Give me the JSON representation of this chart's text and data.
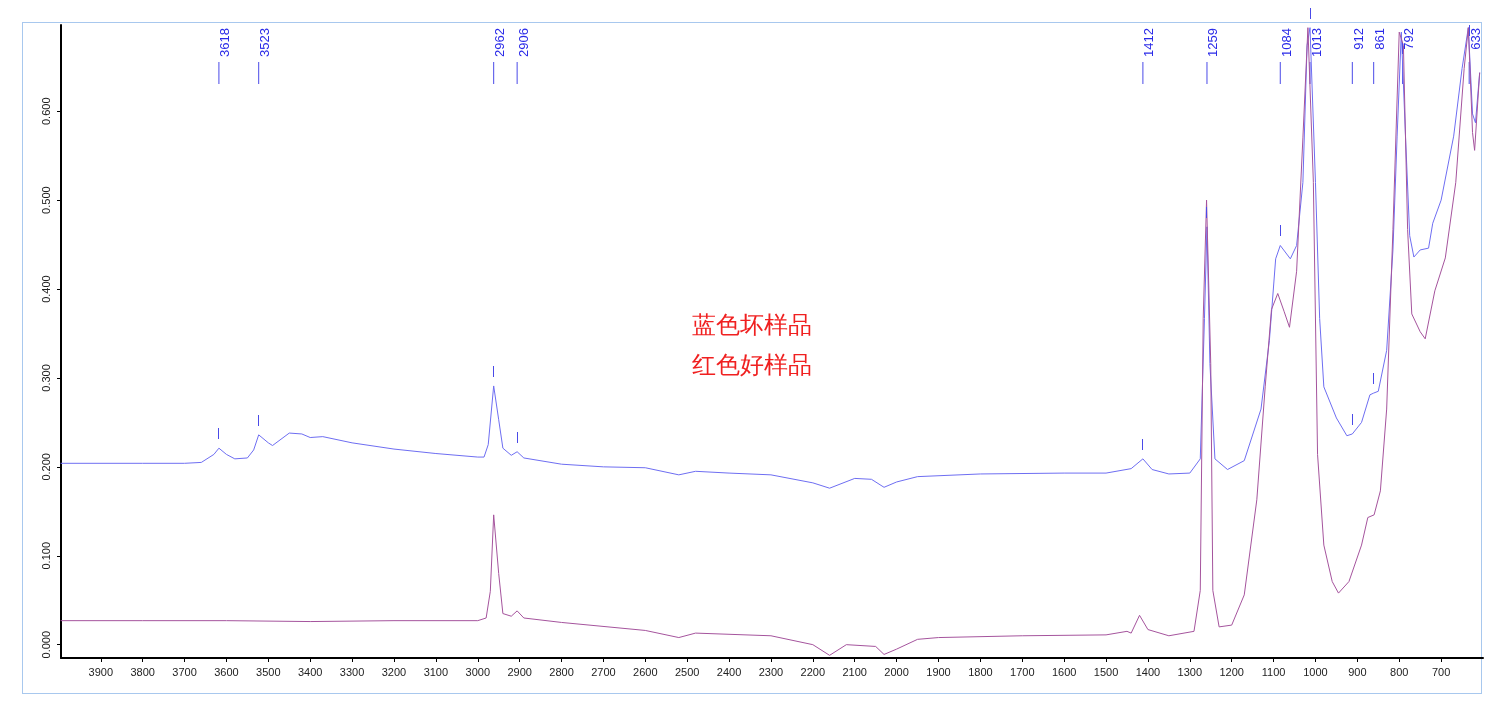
{
  "chart_data": {
    "type": "line",
    "xlim": [
      3995,
      600
    ],
    "ylim": [
      -0.015,
      0.697
    ],
    "xticks": [
      3900,
      3800,
      3700,
      3600,
      3500,
      3400,
      3300,
      3200,
      3100,
      3000,
      2900,
      2800,
      2700,
      2600,
      2500,
      2400,
      2300,
      2200,
      2100,
      2000,
      1900,
      1800,
      1700,
      1600,
      1500,
      1400,
      1300,
      1200,
      1100,
      1000,
      900,
      800,
      700
    ],
    "yticks": [
      {
        "value": 0,
        "label": "0.000"
      },
      {
        "value": 0.1,
        "label": "0.100"
      },
      {
        "value": 0.2,
        "label": "0.200"
      },
      {
        "value": 0.3,
        "label": "0.300"
      },
      {
        "value": 0.4,
        "label": "0.400"
      },
      {
        "value": 0.5,
        "label": "0.500"
      },
      {
        "value": 0.6,
        "label": "0.600"
      }
    ],
    "grid": false,
    "marker": "none",
    "line_style": "solid",
    "series": [
      {
        "color": "#6e6ef2",
        "x": [
          3995,
          3800,
          3700,
          3660,
          3630,
          3618,
          3600,
          3580,
          3550,
          3535,
          3523,
          3500,
          3490,
          3450,
          3420,
          3400,
          3370,
          3300,
          3200,
          3100,
          3000,
          2985,
          2975,
          2962,
          2950,
          2940,
          2920,
          2906,
          2890,
          2800,
          2700,
          2600,
          2520,
          2480,
          2400,
          2300,
          2200,
          2160,
          2100,
          2060,
          2030,
          2000,
          1950,
          1800,
          1600,
          1500,
          1440,
          1412,
          1390,
          1350,
          1300,
          1275,
          1265,
          1259,
          1252,
          1240,
          1210,
          1170,
          1130,
          1110,
          1095,
          1084,
          1060,
          1045,
          1030,
          1020,
          1013,
          1000,
          990,
          980,
          950,
          925,
          912,
          890,
          870,
          861,
          850,
          830,
          815,
          805,
          795,
          785,
          775,
          765,
          750,
          730,
          720,
          700,
          670,
          650,
          635,
          625,
          618,
          608
        ],
        "values": [
          0.204,
          0.204,
          0.204,
          0.205,
          0.214,
          0.221,
          0.214,
          0.209,
          0.21,
          0.219,
          0.236,
          0.227,
          0.224,
          0.238,
          0.237,
          0.233,
          0.234,
          0.227,
          0.22,
          0.215,
          0.211,
          0.211,
          0.225,
          0.291,
          0.253,
          0.221,
          0.213,
          0.217,
          0.21,
          0.203,
          0.2,
          0.199,
          0.191,
          0.195,
          0.193,
          0.191,
          0.182,
          0.176,
          0.187,
          0.186,
          0.177,
          0.183,
          0.189,
          0.192,
          0.193,
          0.193,
          0.198,
          0.209,
          0.197,
          0.192,
          0.193,
          0.209,
          0.367,
          0.47,
          0.316,
          0.209,
          0.197,
          0.207,
          0.265,
          0.342,
          0.434,
          0.449,
          0.434,
          0.449,
          0.52,
          0.674,
          0.694,
          0.52,
          0.367,
          0.29,
          0.255,
          0.235,
          0.237,
          0.25,
          0.281,
          0.283,
          0.285,
          0.331,
          0.444,
          0.572,
          0.689,
          0.572,
          0.46,
          0.436,
          0.444,
          0.446,
          0.474,
          0.5,
          0.572,
          0.648,
          0.694,
          0.597,
          0.587,
          0.643
        ]
      },
      {
        "color": "#a5549d",
        "x": [
          3995,
          3800,
          3600,
          3400,
          3200,
          3000,
          2980,
          2970,
          2962,
          2950,
          2940,
          2920,
          2906,
          2890,
          2800,
          2600,
          2520,
          2480,
          2300,
          2200,
          2160,
          2120,
          2050,
          2030,
          2000,
          1950,
          1900,
          1700,
          1500,
          1450,
          1440,
          1420,
          1400,
          1350,
          1290,
          1275,
          1268,
          1260,
          1250,
          1245,
          1230,
          1200,
          1170,
          1140,
          1120,
          1105,
          1090,
          1075,
          1062,
          1045,
          1030,
          1018,
          1005,
          995,
          980,
          960,
          945,
          920,
          890,
          875,
          860,
          845,
          830,
          815,
          800,
          790,
          780,
          770,
          750,
          738,
          715,
          690,
          665,
          645,
          635,
          625,
          620,
          608
        ],
        "values": [
          0.027,
          0.027,
          0.027,
          0.026,
          0.027,
          0.027,
          0.03,
          0.06,
          0.146,
          0.08,
          0.035,
          0.032,
          0.038,
          0.03,
          0.025,
          0.016,
          0.008,
          0.013,
          0.01,
          0.0,
          -0.012,
          0.0,
          -0.002,
          -0.011,
          -0.005,
          0.006,
          0.008,
          0.01,
          0.011,
          0.015,
          0.013,
          0.033,
          0.017,
          0.01,
          0.015,
          0.061,
          0.367,
          0.5,
          0.316,
          0.061,
          0.02,
          0.022,
          0.056,
          0.163,
          0.29,
          0.377,
          0.395,
          0.375,
          0.357,
          0.42,
          0.57,
          0.694,
          0.52,
          0.214,
          0.112,
          0.071,
          0.058,
          0.071,
          0.112,
          0.143,
          0.146,
          0.173,
          0.265,
          0.467,
          0.689,
          0.674,
          0.467,
          0.372,
          0.352,
          0.344,
          0.398,
          0.435,
          0.52,
          0.648,
          0.694,
          0.576,
          0.556,
          0.643
        ]
      }
    ],
    "annotations": [
      {
        "text": "3618",
        "x": 3618
      },
      {
        "text": "3523",
        "x": 3523
      },
      {
        "text": "2962",
        "x": 2962
      },
      {
        "text": "2906",
        "x": 2906
      },
      {
        "text": "1412",
        "x": 1412
      },
      {
        "text": "1259",
        "x": 1259
      },
      {
        "text": "1084",
        "x": 1084
      },
      {
        "text": "1013",
        "x": 1013
      },
      {
        "text": "912",
        "x": 912
      },
      {
        "text": "861",
        "x": 861
      },
      {
        "text": "792",
        "x": 792
      },
      {
        "text": "633",
        "x": 633
      },
      "蓝色坏样品",
      "红色好样品"
    ]
  }
}
